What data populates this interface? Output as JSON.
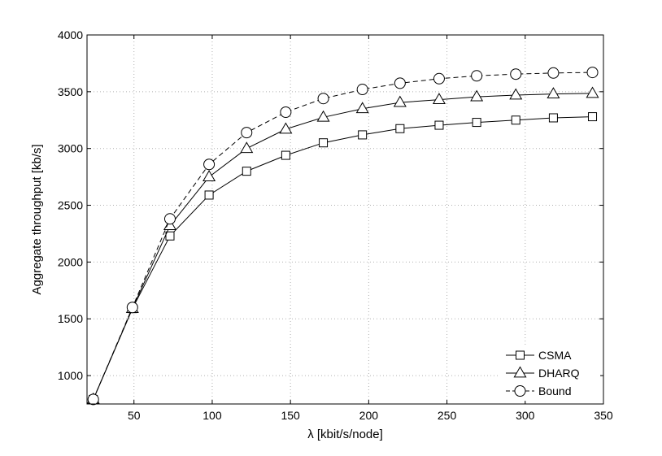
{
  "chart_data": {
    "type": "line",
    "xlabel": "λ  [kbit/s/node]",
    "ylabel": "Aggregate throughput [kb/s]",
    "xlim": [
      20,
      350
    ],
    "ylim": [
      750,
      4000
    ],
    "xticks": [
      50,
      100,
      150,
      200,
      250,
      300,
      350
    ],
    "yticks": [
      1000,
      1500,
      2000,
      2500,
      3000,
      3500,
      4000
    ],
    "xtick_labels": [
      "50",
      "100",
      "150",
      "200",
      "250",
      "300",
      "350"
    ],
    "ytick_labels": [
      "1000",
      "1500",
      "2000",
      "2500",
      "3000",
      "3500",
      "4000"
    ],
    "grid": true,
    "legend_position": "bottom-right",
    "x": [
      24,
      49,
      73,
      98,
      122,
      147,
      171,
      196,
      220,
      245,
      269,
      294,
      318,
      343
    ],
    "series": [
      {
        "name": "CSMA",
        "marker": "square",
        "line": "solid",
        "values": [
          790,
          1590,
          2230,
          2590,
          2800,
          2940,
          3050,
          3120,
          3175,
          3205,
          3230,
          3250,
          3270,
          3280
        ]
      },
      {
        "name": "DHARQ",
        "marker": "triangle",
        "line": "solid",
        "values": [
          790,
          1590,
          2320,
          2750,
          3000,
          3170,
          3275,
          3350,
          3405,
          3430,
          3455,
          3470,
          3480,
          3485
        ]
      },
      {
        "name": "Bound",
        "marker": "circle",
        "line": "dashed",
        "values": [
          790,
          1600,
          2380,
          2860,
          3140,
          3320,
          3440,
          3520,
          3575,
          3615,
          3640,
          3655,
          3665,
          3670
        ]
      }
    ]
  }
}
